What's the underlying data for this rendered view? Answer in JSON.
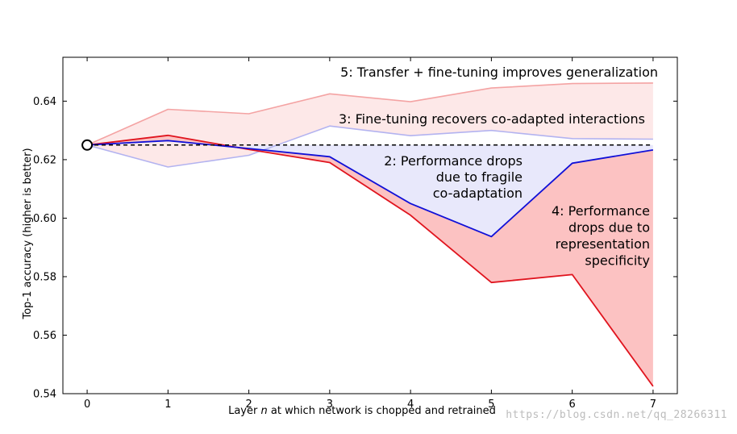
{
  "chart_data": {
    "type": "line",
    "xlabel_prefix": "Layer ",
    "xlabel_var": "n",
    "xlabel_suffix": " at which network is chopped and retrained",
    "ylabel": "Top-1 accuracy (higher is better)",
    "xlim": [
      -0.3,
      7.3
    ],
    "ylim": [
      0.54,
      0.655
    ],
    "xticks": [
      0,
      1,
      2,
      3,
      4,
      5,
      6,
      7
    ],
    "yticks": [
      0.54,
      0.56,
      0.58,
      0.6,
      0.62,
      0.64
    ],
    "ytick_labels": [
      "0.54",
      "0.56",
      "0.58",
      "0.60",
      "0.62",
      "0.64"
    ],
    "baseline": 0.625,
    "base_point": {
      "x": 0,
      "y": 0.625
    },
    "colors": {
      "transfer_finetune": "#f4a3a3",
      "transfer_finetune_fill": "#fde8e8",
      "self_finetune": "#b3b3f0",
      "transfer_frozen": "#e0141e",
      "transfer_frozen_fill": "#fcc2c2",
      "self_frozen": "#1010d8",
      "self_frozen_fill": "#e8e8fb",
      "baseline": "#000000"
    },
    "series": [
      {
        "key": "transfer_finetune",
        "x": [
          0,
          1,
          2,
          3,
          4,
          5,
          6,
          7
        ],
        "values": [
          0.625,
          0.6372,
          0.6357,
          0.6425,
          0.6398,
          0.6445,
          0.646,
          0.6462
        ]
      },
      {
        "key": "self_finetune",
        "x": [
          0,
          1,
          2,
          3,
          4,
          5,
          6,
          7
        ],
        "values": [
          0.625,
          0.6175,
          0.6215,
          0.6315,
          0.6282,
          0.63,
          0.6272,
          0.627
        ]
      },
      {
        "key": "self_frozen",
        "x": [
          0,
          1,
          2,
          3,
          4,
          5,
          6,
          7
        ],
        "values": [
          0.625,
          0.6265,
          0.6238,
          0.621,
          0.605,
          0.5937,
          0.6188,
          0.6233
        ]
      },
      {
        "key": "transfer_frozen",
        "x": [
          0,
          1,
          2,
          3,
          4,
          5,
          6,
          7
        ],
        "values": [
          0.625,
          0.6283,
          0.6235,
          0.619,
          0.601,
          0.578,
          0.5807,
          0.5425
        ]
      }
    ],
    "annotations": [
      {
        "id": "a5",
        "lines": [
          "5: Transfer + fine-tuning improves generalization"
        ]
      },
      {
        "id": "a3",
        "lines": [
          "3: Fine-tuning recovers co-adapted interactions"
        ]
      },
      {
        "id": "a2",
        "lines": [
          "2: Performance drops",
          "due to fragile",
          "co-adaptation"
        ]
      },
      {
        "id": "a4",
        "lines": [
          "4: Performance",
          "drops due to",
          "representation",
          "specificity"
        ]
      }
    ]
  },
  "watermark": "https://blog.csdn.net/qq_28266311"
}
